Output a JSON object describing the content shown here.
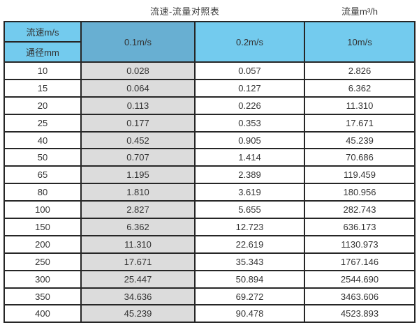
{
  "chart_data": {
    "type": "table",
    "title": "流速-流量对照表",
    "unit_label": "流量m³/h",
    "corner": {
      "top": "流速m/s",
      "bottom": "通径mm"
    },
    "columns": [
      "0.1m/s",
      "0.2m/s",
      "10m/s"
    ],
    "rows": [
      {
        "diameter": "10",
        "values": [
          "0.028",
          "0.057",
          "2.826"
        ]
      },
      {
        "diameter": "15",
        "values": [
          "0.064",
          "0.127",
          "6.362"
        ]
      },
      {
        "diameter": "20",
        "values": [
          "0.113",
          "0.226",
          "11.310"
        ]
      },
      {
        "diameter": "25",
        "values": [
          "0.177",
          "0.353",
          "17.671"
        ]
      },
      {
        "diameter": "40",
        "values": [
          "0.452",
          "0.905",
          "45.239"
        ]
      },
      {
        "diameter": "50",
        "values": [
          "0.707",
          "1.414",
          "70.686"
        ]
      },
      {
        "diameter": "65",
        "values": [
          "1.195",
          "2.389",
          "119.459"
        ]
      },
      {
        "diameter": "80",
        "values": [
          "1.810",
          "3.619",
          "180.956"
        ]
      },
      {
        "diameter": "100",
        "values": [
          "2.827",
          "5.655",
          "282.743"
        ]
      },
      {
        "diameter": "150",
        "values": [
          "6.362",
          "12.723",
          "636.173"
        ]
      },
      {
        "diameter": "200",
        "values": [
          "11.310",
          "22.619",
          "1130.973"
        ]
      },
      {
        "diameter": "250",
        "values": [
          "17.671",
          "35.343",
          "1767.146"
        ]
      },
      {
        "diameter": "300",
        "values": [
          "25.447",
          "50.894",
          "2544.690"
        ]
      },
      {
        "diameter": "350",
        "values": [
          "34.636",
          "69.272",
          "3463.606"
        ]
      },
      {
        "diameter": "400",
        "values": [
          "45.239",
          "90.478",
          "4523.893"
        ]
      }
    ],
    "colors": {
      "header_blue_light": "#73CBEE",
      "header_blue_dark": "#68AFD2",
      "value_column_gray": "#DCDCDC",
      "grid_border": "#262626"
    }
  }
}
